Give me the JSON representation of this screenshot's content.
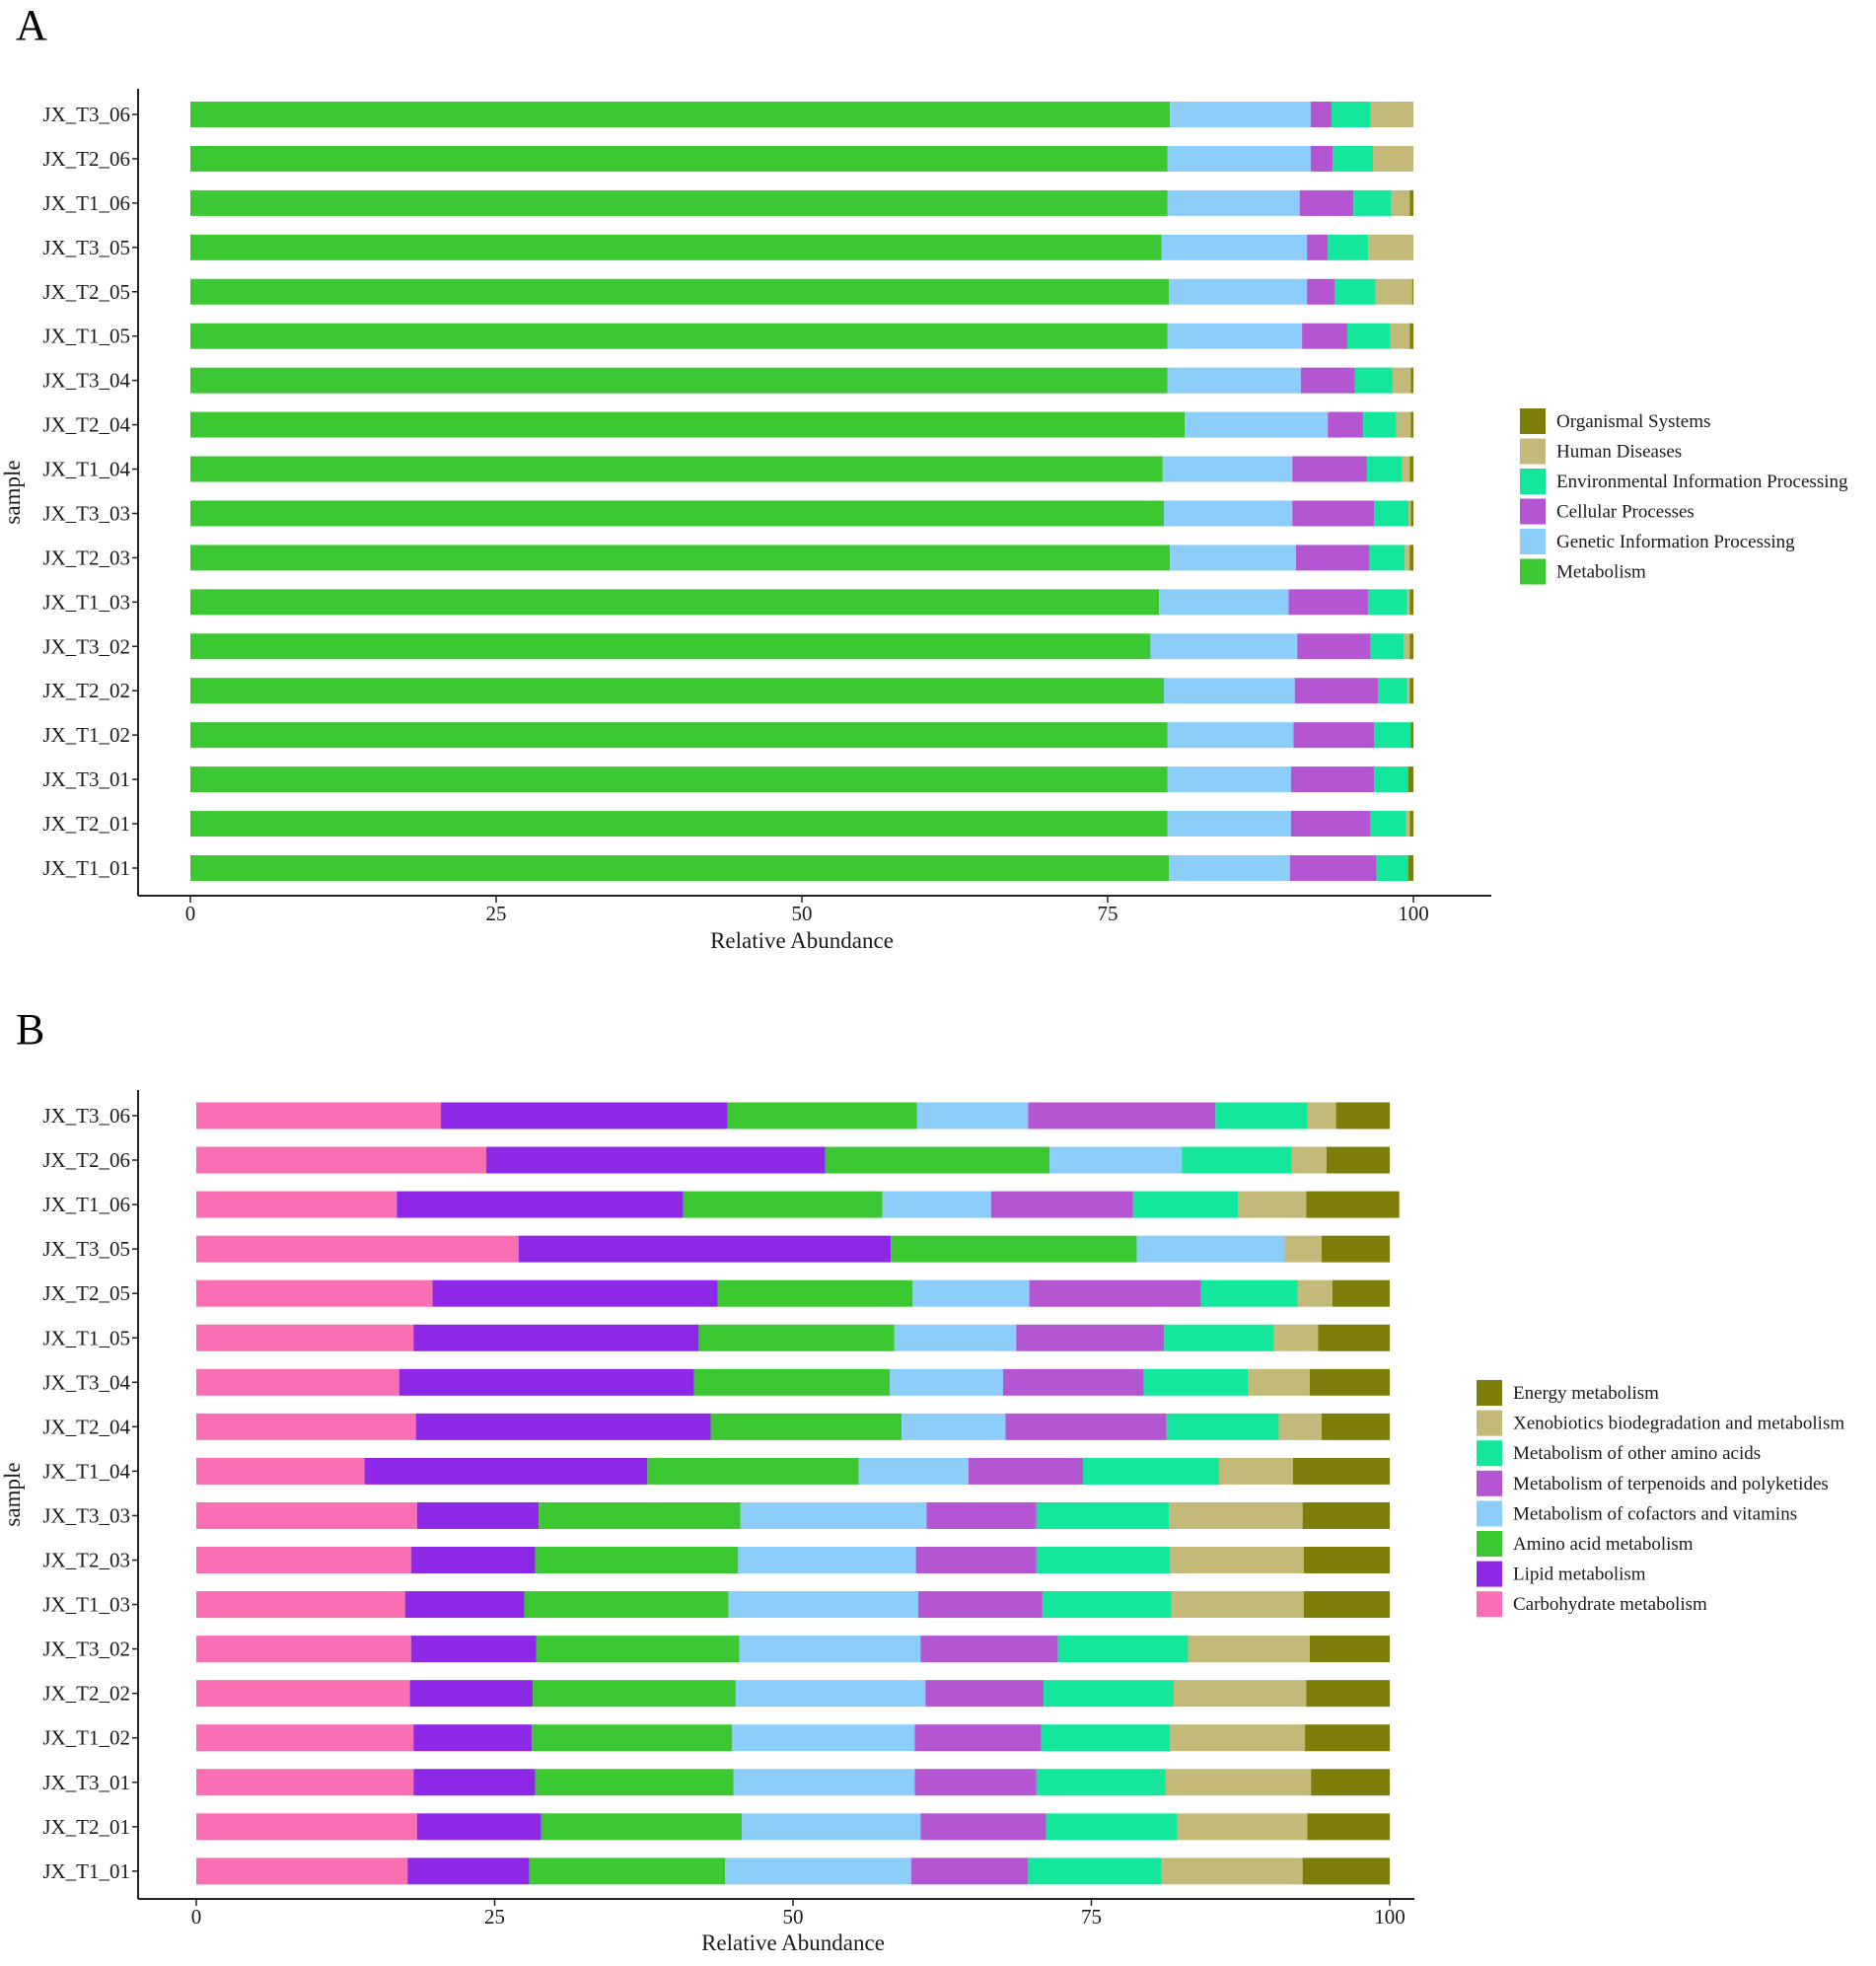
{
  "chart_data": [
    {
      "type": "bar",
      "orientation": "horizontal",
      "stacked": true,
      "panel_label": "A",
      "xlabel": "Relative Abundance",
      "ylabel": "sample",
      "xlim": [
        0,
        100
      ],
      "xticks": [
        "0",
        "25",
        "50",
        "75",
        "100"
      ],
      "categories": [
        "JX_T3_06",
        "JX_T2_06",
        "JX_T1_06",
        "JX_T3_05",
        "JX_T2_05",
        "JX_T1_05",
        "JX_T3_04",
        "JX_T2_04",
        "JX_T1_04",
        "JX_T3_03",
        "JX_T2_03",
        "JX_T1_03",
        "JX_T3_02",
        "JX_T2_02",
        "JX_T1_02",
        "JX_T3_01",
        "JX_T2_01",
        "JX_T1_01"
      ],
      "legend_position": "right",
      "legend": [
        "Organismal Systems",
        "Human Diseases",
        "Environmental Information Processing",
        "Cellular Processes",
        "Genetic Information Processing",
        "Metabolism"
      ],
      "series": [
        {
          "name": "Metabolism",
          "color": "#3cc832",
          "values": [
            80.1,
            79.9,
            79.9,
            79.4,
            80.0,
            79.9,
            79.9,
            81.3,
            79.5,
            79.6,
            80.1,
            79.2,
            78.5,
            79.6,
            79.9,
            79.9,
            79.9,
            80.0
          ]
        },
        {
          "name": "Genetic Information Processing",
          "color": "#8ccdfa",
          "values": [
            11.5,
            11.7,
            10.8,
            11.9,
            11.3,
            11.0,
            10.9,
            11.7,
            10.6,
            10.5,
            10.3,
            10.6,
            12.0,
            10.7,
            10.3,
            10.1,
            10.1,
            9.9
          ]
        },
        {
          "name": "Cellular Processes",
          "color": "#b455d2",
          "values": [
            1.7,
            1.8,
            4.4,
            1.7,
            2.3,
            3.7,
            4.4,
            2.9,
            6.1,
            6.7,
            6.0,
            6.5,
            6.0,
            6.8,
            6.6,
            6.8,
            6.5,
            7.1
          ]
        },
        {
          "name": "Environmental Information Processing",
          "color": "#14e69b",
          "values": [
            3.2,
            3.3,
            3.1,
            3.3,
            3.3,
            3.5,
            3.1,
            2.7,
            2.9,
            2.8,
            2.9,
            3.2,
            2.7,
            2.4,
            3.0,
            2.8,
            2.9,
            2.6
          ]
        },
        {
          "name": "Human Diseases",
          "color": "#c3b978",
          "values": [
            3.5,
            3.3,
            1.5,
            3.7,
            3.0,
            1.6,
            1.5,
            1.2,
            0.6,
            0.2,
            0.4,
            0.2,
            0.5,
            0.2,
            0.0,
            0.0,
            0.3,
            0.0
          ]
        },
        {
          "name": "Organismal Systems",
          "color": "#7d7d0a",
          "values": [
            0.0,
            0.0,
            0.3,
            0.0,
            0.1,
            0.3,
            0.2,
            0.2,
            0.3,
            0.2,
            0.3,
            0.3,
            0.3,
            0.3,
            0.2,
            0.4,
            0.3,
            0.4
          ]
        }
      ]
    },
    {
      "type": "bar",
      "orientation": "horizontal",
      "stacked": true,
      "panel_label": "B",
      "xlabel": "Relative Abundance",
      "ylabel": "sample",
      "xlim": [
        0,
        100
      ],
      "xticks": [
        "0",
        "25",
        "50",
        "75",
        "100"
      ],
      "categories": [
        "JX_T3_06",
        "JX_T2_06",
        "JX_T1_06",
        "JX_T3_05",
        "JX_T2_05",
        "JX_T1_05",
        "JX_T3_04",
        "JX_T2_04",
        "JX_T1_04",
        "JX_T3_03",
        "JX_T2_03",
        "JX_T1_03",
        "JX_T3_02",
        "JX_T2_02",
        "JX_T1_02",
        "JX_T3_01",
        "JX_T2_01",
        "JX_T1_01"
      ],
      "legend_position": "right",
      "legend": [
        "Energy metabolism",
        "Xenobiotics biodegradation and metabolism",
        "Metabolism of other amino acids",
        "Metabolism of terpenoids and polyketides",
        "Metabolism of cofactors and vitamins",
        "Amino acid metabolism",
        "Lipid metabolism",
        "Carbohydrate metabolism"
      ],
      "series": [
        {
          "name": "Carbohydrate metabolism",
          "color": "#fa6eb4",
          "values": [
            20.5,
            24.3,
            16.8,
            27.0,
            19.8,
            18.2,
            17.0,
            18.4,
            14.1,
            18.5,
            18.0,
            17.5,
            18.0,
            17.9,
            18.2,
            18.2,
            18.5,
            17.7
          ]
        },
        {
          "name": "Lipid metabolism",
          "color": "#8c28e6",
          "values": [
            24.0,
            28.4,
            24.0,
            31.2,
            23.9,
            23.9,
            24.7,
            24.7,
            23.7,
            10.2,
            10.4,
            10.0,
            10.5,
            10.3,
            9.9,
            10.2,
            10.4,
            10.2
          ]
        },
        {
          "name": "Amino acid metabolism",
          "color": "#3cc832",
          "values": [
            15.9,
            18.8,
            16.7,
            20.6,
            16.3,
            16.4,
            16.4,
            16.0,
            17.7,
            16.9,
            17.0,
            17.1,
            17.0,
            17.0,
            16.8,
            16.6,
            16.8,
            16.4
          ]
        },
        {
          "name": "Metabolism of cofactors and vitamins",
          "color": "#8ccdfa",
          "values": [
            9.3,
            11.1,
            9.1,
            12.4,
            9.8,
            10.2,
            9.5,
            8.7,
            9.2,
            15.6,
            14.9,
            15.9,
            15.2,
            15.9,
            15.3,
            15.2,
            15.0,
            15.6
          ]
        },
        {
          "name": "Metabolism of terpenoids and polyketides",
          "color": "#b455d2",
          "values": [
            15.7,
            0.0,
            11.9,
            0.0,
            14.4,
            12.4,
            11.8,
            13.5,
            9.6,
            9.2,
            10.1,
            10.4,
            11.5,
            9.9,
            10.6,
            10.2,
            10.5,
            9.8
          ]
        },
        {
          "name": "Metabolism of other amino acids",
          "color": "#14e69b",
          "values": [
            7.7,
            9.2,
            8.8,
            0.0,
            8.1,
            9.2,
            8.7,
            9.4,
            11.4,
            11.1,
            11.2,
            10.8,
            10.9,
            10.9,
            10.8,
            10.8,
            11.0,
            11.2
          ]
        },
        {
          "name": "Xenobiotics biodegradation and metabolism",
          "color": "#c3b978",
          "values": [
            2.4,
            2.9,
            5.7,
            3.1,
            2.9,
            3.7,
            5.2,
            3.6,
            6.2,
            11.2,
            11.2,
            11.1,
            10.2,
            11.1,
            11.3,
            12.2,
            10.9,
            11.8
          ]
        },
        {
          "name": "Energy metabolism",
          "color": "#7d7d0a",
          "values": [
            4.5,
            5.3,
            7.8,
            5.7,
            4.8,
            6.0,
            6.7,
            5.7,
            8.1,
            7.3,
            7.2,
            7.2,
            6.7,
            7.0,
            7.1,
            6.6,
            6.9,
            7.3
          ]
        }
      ]
    }
  ]
}
